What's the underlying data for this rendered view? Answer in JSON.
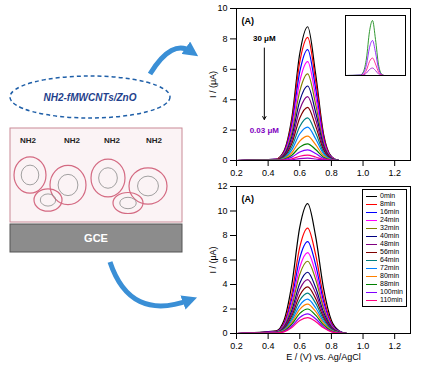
{
  "diagram": {
    "film_label": "NH2-fMWCNTs/ZnO",
    "group_labels": [
      "NH2",
      "NH2",
      "NH2",
      "NH2"
    ],
    "electrode_label": "GCE"
  },
  "chart_data": [
    {
      "type": "line",
      "panel_label": "(A)",
      "ylabel": "I / (μA)",
      "x": [
        0.2,
        0.45,
        0.5,
        0.55,
        0.6,
        0.65,
        0.7,
        0.75,
        0.8,
        0.85,
        1.2
      ],
      "xlim": [
        0.2,
        1.3
      ],
      "xticks": [
        0.2,
        0.4,
        0.6,
        0.8,
        {
          "value": 1,
          "label": "1.0"
        },
        1.2
      ],
      "ylim": [
        0,
        10
      ],
      "yticks": [
        0,
        2,
        4,
        6,
        8,
        10
      ],
      "annotations": [
        {
          "text": "30 μM",
          "color": "#000000"
        },
        {
          "text": "0.03 μM",
          "color": "#8000c0"
        }
      ],
      "series": [
        {
          "color": "#000000",
          "values": [
            0,
            0.09,
            0.62,
            2.82,
            7.04,
            8.8,
            5.72,
            1.76,
            0.26,
            0,
            0
          ]
        },
        {
          "color": "#ff0000",
          "values": [
            0,
            0.08,
            0.57,
            2.59,
            6.48,
            8.1,
            5.27,
            1.62,
            0.24,
            0,
            0
          ]
        },
        {
          "color": "#0000ff",
          "values": [
            0,
            0.07,
            0.51,
            2.34,
            5.84,
            7.3,
            4.75,
            1.46,
            0.22,
            0,
            0
          ]
        },
        {
          "color": "#ff00ff",
          "values": [
            0,
            0.07,
            0.46,
            2.08,
            5.2,
            6.5,
            4.23,
            1.3,
            0.2,
            0,
            0
          ]
        },
        {
          "color": "#808000",
          "values": [
            0,
            0.06,
            0.4,
            1.82,
            4.56,
            5.7,
            3.71,
            1.14,
            0.17,
            0,
            0
          ]
        },
        {
          "color": "#000080",
          "values": [
            0,
            0.05,
            0.34,
            1.57,
            3.92,
            4.9,
            3.19,
            0.98,
            0.15,
            0,
            0
          ]
        },
        {
          "color": "#800080",
          "values": [
            0,
            0.04,
            0.29,
            1.34,
            3.36,
            4.2,
            2.73,
            0.84,
            0.13,
            0,
            0
          ]
        },
        {
          "color": "#800000",
          "values": [
            0,
            0.04,
            0.25,
            1.12,
            2.8,
            3.5,
            2.28,
            0.7,
            0.11,
            0,
            0
          ]
        },
        {
          "color": "#008080",
          "values": [
            0,
            0.03,
            0.2,
            0.9,
            2.24,
            2.8,
            1.82,
            0.56,
            0.08,
            0,
            0
          ]
        },
        {
          "color": "#0080ff",
          "values": [
            0,
            0.02,
            0.15,
            0.7,
            1.76,
            2.2,
            1.43,
            0.44,
            0.07,
            0,
            0
          ]
        },
        {
          "color": "#ff8000",
          "values": [
            0,
            0.02,
            0.11,
            0.51,
            1.28,
            1.6,
            1.04,
            0.32,
            0.05,
            0,
            0
          ]
        },
        {
          "color": "#008000",
          "values": [
            0,
            0.01,
            0.08,
            0.35,
            0.88,
            1.1,
            0.72,
            0.22,
            0.03,
            0,
            0
          ]
        },
        {
          "color": "#8000ff",
          "values": [
            0,
            0.01,
            0.05,
            0.22,
            0.56,
            0.7,
            0.46,
            0.14,
            0.02,
            0,
            0
          ]
        },
        {
          "color": "#ff0080",
          "values": [
            0,
            0,
            0.02,
            0.11,
            0.28,
            0.35,
            0.23,
            0.07,
            0.01,
            0,
            0
          ]
        },
        {
          "color": "#9900cc",
          "values": [
            0,
            0,
            0.01,
            0.05,
            0.12,
            0.15,
            0.1,
            0.03,
            0,
            0,
            0
          ]
        }
      ],
      "inset": {
        "type": "line",
        "tick_labels": false,
        "x": [
          0.2,
          0.45,
          0.5,
          0.55,
          0.6,
          0.65,
          0.7,
          0.75,
          0.8,
          0.85,
          1.2
        ],
        "xlim": [
          0.2,
          1.2
        ],
        "ylim": [
          0,
          1.2
        ],
        "series": [
          {
            "color": "#008000",
            "values": [
              0,
              0.01,
              0.08,
              0.35,
              0.88,
              1.1,
              0.72,
              0.22,
              0.03,
              0,
              0
            ]
          },
          {
            "color": "#8000ff",
            "values": [
              0,
              0.01,
              0.05,
              0.22,
              0.56,
              0.7,
              0.46,
              0.14,
              0.02,
              0,
              0
            ]
          },
          {
            "color": "#ff0080",
            "values": [
              0,
              0,
              0.02,
              0.11,
              0.28,
              0.35,
              0.23,
              0.07,
              0.01,
              0,
              0
            ]
          },
          {
            "color": "#9900cc",
            "values": [
              0,
              0,
              0.01,
              0.05,
              0.12,
              0.15,
              0.1,
              0.03,
              0,
              0,
              0
            ]
          }
        ]
      }
    },
    {
      "type": "line",
      "panel_label": "(A)",
      "xlabel": "E / (V) vs. Ag/AgCl",
      "ylabel": "I / (μA)",
      "legend": "top-right",
      "x": [
        0.2,
        0.45,
        0.5,
        0.55,
        0.6,
        0.65,
        0.7,
        0.75,
        0.8,
        0.85,
        0.9,
        1.2
      ],
      "xlim": [
        0.2,
        1.3
      ],
      "xticks": [
        0.2,
        0.4,
        0.6,
        0.8,
        {
          "value": 1,
          "label": "1.0"
        },
        1.2
      ],
      "ylim": [
        0,
        12
      ],
      "yticks": [
        0,
        2,
        4,
        6,
        8,
        10,
        12
      ],
      "series": [
        {
          "name": "0min",
          "color": "#000000",
          "values": [
            0,
            0.21,
            1.06,
            4.03,
            8.69,
            10.6,
            7.95,
            3.71,
            1.06,
            0.21,
            0,
            0
          ]
        },
        {
          "name": "8min",
          "color": "#ff0000",
          "values": [
            0,
            0.17,
            0.86,
            3.27,
            7.05,
            8.6,
            6.45,
            3.01,
            0.86,
            0.17,
            0,
            0
          ]
        },
        {
          "name": "16min",
          "color": "#0000ff",
          "values": [
            0,
            0.15,
            0.75,
            2.85,
            6.15,
            7.5,
            5.63,
            2.63,
            0.75,
            0.15,
            0,
            0
          ]
        },
        {
          "name": "24min",
          "color": "#ff00ff",
          "values": [
            0,
            0.13,
            0.66,
            2.51,
            5.41,
            6.6,
            4.95,
            2.31,
            0.66,
            0.13,
            0,
            0
          ]
        },
        {
          "name": "32min",
          "color": "#808000",
          "values": [
            0,
            0.12,
            0.59,
            2.24,
            4.84,
            5.9,
            4.43,
            2.07,
            0.59,
            0.12,
            0,
            0
          ]
        },
        {
          "name": "40min",
          "color": "#000080",
          "values": [
            0,
            0.1,
            0.5,
            1.9,
            4.1,
            5,
            3.75,
            1.75,
            0.5,
            0.1,
            0,
            0
          ]
        },
        {
          "name": "48min",
          "color": "#800080",
          "values": [
            0,
            0.09,
            0.44,
            1.67,
            3.61,
            4.4,
            3.3,
            1.54,
            0.44,
            0.09,
            0,
            0
          ]
        },
        {
          "name": "56min",
          "color": "#800000",
          "values": [
            0,
            0.08,
            0.38,
            1.44,
            3.12,
            3.8,
            2.85,
            1.33,
            0.38,
            0.08,
            0,
            0
          ]
        },
        {
          "name": "64min",
          "color": "#008080",
          "values": [
            0,
            0.07,
            0.33,
            1.25,
            2.71,
            3.3,
            2.48,
            1.16,
            0.33,
            0.07,
            0,
            0
          ]
        },
        {
          "name": "72min",
          "color": "#0080ff",
          "values": [
            0,
            0.06,
            0.28,
            1.06,
            2.3,
            2.8,
            2.1,
            0.98,
            0.28,
            0.06,
            0,
            0
          ]
        },
        {
          "name": "80min",
          "color": "#ff8000",
          "values": [
            0,
            0.05,
            0.24,
            0.91,
            1.97,
            2.4,
            1.8,
            0.84,
            0.24,
            0.05,
            0,
            0
          ]
        },
        {
          "name": "88min",
          "color": "#008000",
          "values": [
            0,
            0.04,
            0.2,
            0.76,
            1.64,
            2,
            1.5,
            0.7,
            0.2,
            0.04,
            0,
            0
          ]
        },
        {
          "name": "100min",
          "color": "#8000ff",
          "values": [
            0,
            0.03,
            0.16,
            0.61,
            1.31,
            1.6,
            1.2,
            0.56,
            0.16,
            0.03,
            0,
            0
          ]
        },
        {
          "name": "110min",
          "color": "#ff0080",
          "values": [
            0,
            0.03,
            0.13,
            0.49,
            1.07,
            1.3,
            0.98,
            0.46,
            0.13,
            0.03,
            0,
            0
          ]
        }
      ]
    }
  ]
}
